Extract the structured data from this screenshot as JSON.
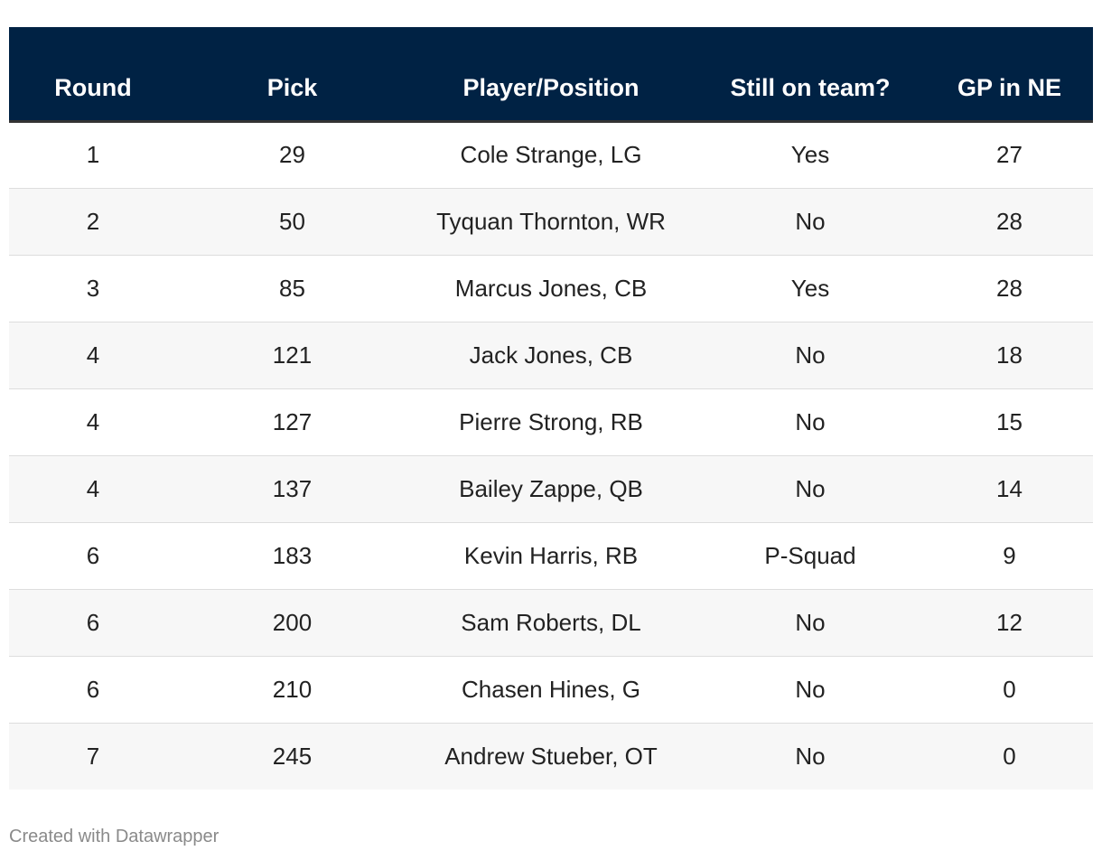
{
  "chart_data": {
    "type": "table",
    "columns": [
      "Round",
      "Pick",
      "Player/Position",
      "Still on team?",
      "GP in NE"
    ],
    "rows": [
      [
        "1",
        "29",
        "Cole Strange, LG",
        "Yes",
        "27"
      ],
      [
        "2",
        "50",
        "Tyquan Thornton, WR",
        "No",
        "28"
      ],
      [
        "3",
        "85",
        "Marcus Jones, CB",
        "Yes",
        "28"
      ],
      [
        "4",
        "121",
        "Jack Jones, CB",
        "No",
        "18"
      ],
      [
        "4",
        "127",
        "Pierre Strong, RB",
        "No",
        "15"
      ],
      [
        "4",
        "137",
        "Bailey Zappe, QB",
        "No",
        "14"
      ],
      [
        "6",
        "183",
        "Kevin Harris, RB",
        "P-Squad",
        "9"
      ],
      [
        "6",
        "200",
        "Sam Roberts, DL",
        "No",
        "12"
      ],
      [
        "6",
        "210",
        "Chasen Hines, G",
        "No",
        "0"
      ],
      [
        "7",
        "245",
        "Andrew Stueber, OT",
        "No",
        "0"
      ]
    ]
  },
  "footer": {
    "credit": "Created with Datawrapper"
  },
  "colors": {
    "header_bg": "#002244",
    "header_text": "#ffffff",
    "stripe": "#f7f7f7"
  }
}
